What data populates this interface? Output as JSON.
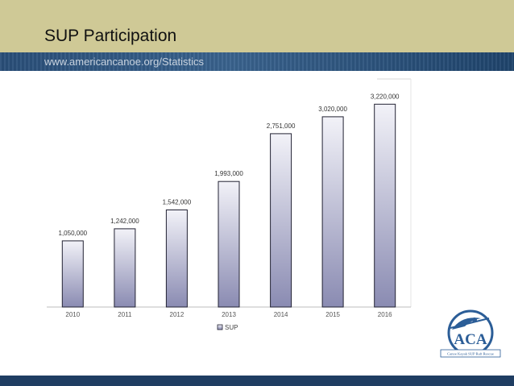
{
  "slide": {
    "title": "SUP Participation",
    "subtitle": "www.americancanoe.org/Statistics"
  },
  "logo": {
    "text": "ACA",
    "tagline": "Canoe Kayak SUP Raft Rescue"
  },
  "colors": {
    "title_band": "#cfc996",
    "sub_band": "#2a4f79",
    "bottom_band": "#1f3d62",
    "bar_top": "#f2f2f8",
    "bar_bottom": "#8a8bb2",
    "bar_stroke": "#222233"
  },
  "chart_data": {
    "type": "bar",
    "categories": [
      "2010",
      "2011",
      "2012",
      "2013",
      "2014",
      "2015",
      "2016"
    ],
    "series": [
      {
        "name": "SUP",
        "values": [
          1050000,
          1242000,
          1542000,
          1993000,
          2751000,
          3020000,
          3220000
        ],
        "labels": [
          "1,050,000",
          "1,242,000",
          "1,542,000",
          "1,993,000",
          "2,751,000",
          "3,020,000",
          "3,220,000"
        ]
      }
    ],
    "ylim": [
      0,
      3620000
    ],
    "grid": false,
    "legend": "bottom"
  }
}
